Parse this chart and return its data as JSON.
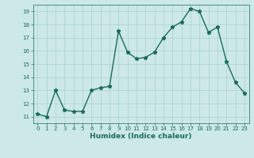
{
  "x": [
    0,
    1,
    2,
    3,
    4,
    5,
    6,
    7,
    8,
    9,
    10,
    11,
    12,
    13,
    14,
    15,
    16,
    17,
    18,
    19,
    20,
    21,
    22,
    23
  ],
  "y": [
    11.2,
    11.0,
    13.0,
    11.5,
    11.4,
    11.4,
    13.0,
    13.2,
    13.3,
    17.5,
    15.9,
    15.4,
    15.5,
    15.9,
    17.0,
    17.8,
    18.2,
    19.2,
    19.0,
    17.4,
    17.8,
    15.2,
    13.6,
    12.8
  ],
  "xlabel": "Humidex (Indice chaleur)",
  "line_color": "#1a6b5a",
  "marker": "*",
  "marker_size": 3.5,
  "bg_color": "#cce8e8",
  "grid_color": "#aad0d0",
  "tick_color": "#1a6b5a",
  "label_color": "#1a6b5a",
  "xlim": [
    -0.5,
    23.5
  ],
  "ylim": [
    10.5,
    19.5
  ],
  "yticks": [
    11,
    12,
    13,
    14,
    15,
    16,
    17,
    18,
    19
  ],
  "xticks": [
    0,
    1,
    2,
    3,
    4,
    5,
    6,
    7,
    8,
    9,
    10,
    11,
    12,
    13,
    14,
    15,
    16,
    17,
    18,
    19,
    20,
    21,
    22,
    23
  ],
  "linewidth": 1.0,
  "tick_fontsize": 5.0,
  "xlabel_fontsize": 6.5
}
